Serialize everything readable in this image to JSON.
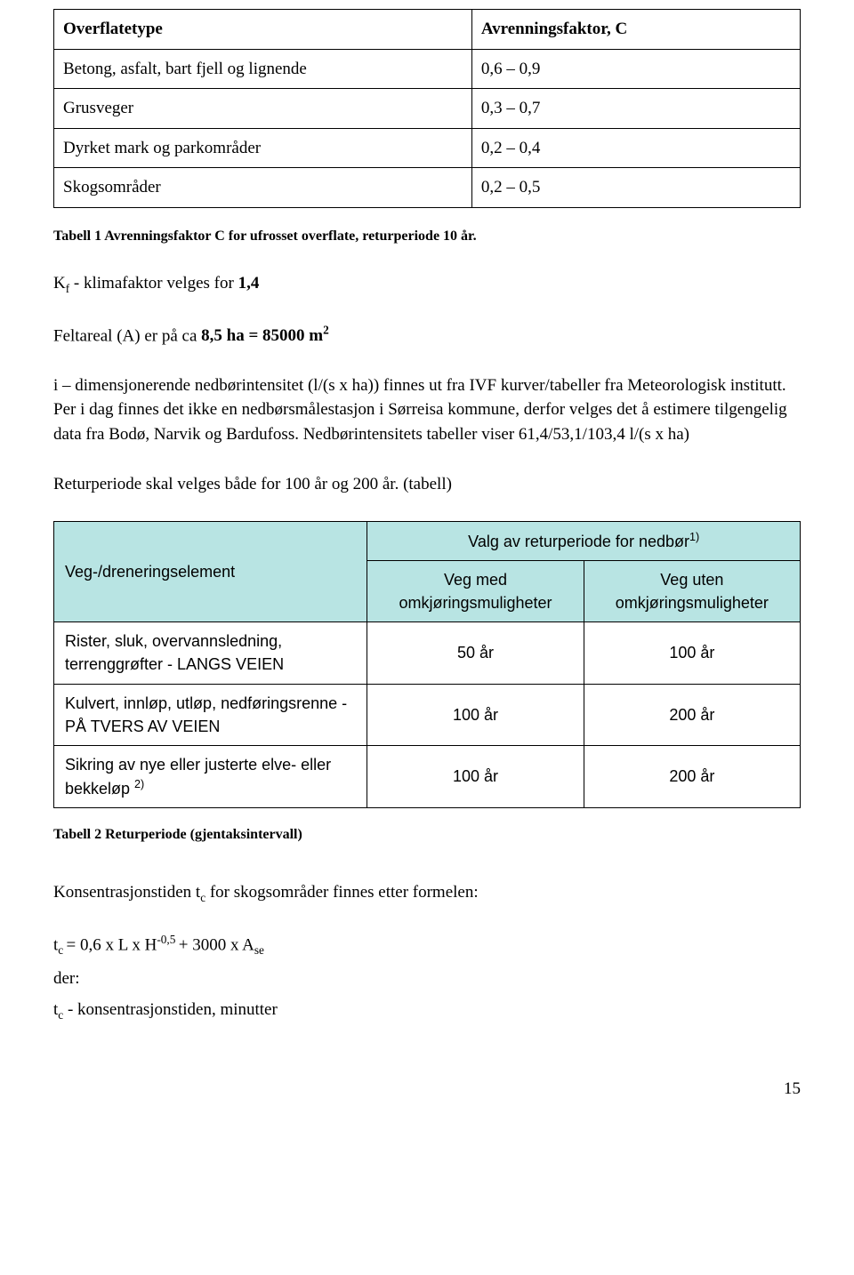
{
  "table1": {
    "columns": [
      "Overflatetype",
      "Avrenningsfaktor, C"
    ],
    "rows": [
      [
        "Betong, asfalt, bart fjell og lignende",
        "0,6 – 0,9"
      ],
      [
        "Grusveger",
        "0,3 – 0,7"
      ],
      [
        "Dyrket mark og parkområder",
        "0,2 – 0,4"
      ],
      [
        "Skogsområder",
        "0,2 – 0,5"
      ]
    ]
  },
  "caption1": "Tabell 1 Avrenningsfaktor C for ufrosset overflate, returperiode 10 år.",
  "para_kf_pre": "K",
  "para_kf_sub": "f",
  "para_kf_rest": "  - klimafaktor velges for ",
  "para_kf_bold": "1,4",
  "para_felt_pre": "Feltareal (A) er på ca ",
  "para_felt_bold": "8,5 ha = 85000 m",
  "para_felt_sup": "2",
  "para_i": "i – dimensjonerende nedbørintensitet (l/(s x ha)) finnes ut fra IVF kurver/tabeller fra Meteorologisk institutt. Per i dag finnes det ikke en nedbørsmålestasjon i Sørreisa kommune, derfor velges det å estimere tilgengelig data fra Bodø, Narvik og Bardufoss. Nedbørintensitets tabeller viser 61,4/53,1/103,4  l/(s x ha)",
  "para_retur": "Returperiode skal velges både for 100 år og 200 år. (tabell)",
  "table2": {
    "top_header": "Valg av returperiode for nedbør",
    "top_sup": "1)",
    "left_header": "Veg-/dreneringselement",
    "sub_headers": [
      "Veg med omkjøringsmuligheter",
      "Veg uten omkjøringsmuligheter"
    ],
    "rows": [
      [
        "Rister, sluk, overvannsledning, terrenggrøfter - LANGS VEIEN",
        "50 år",
        "100 år"
      ],
      [
        "Kulvert, innløp, utløp, nedføringsrenne - PÅ TVERS AV VEIEN",
        "100 år",
        "200 år"
      ],
      [
        "Sikring av nye eller justerte elve- eller bekkeløp ",
        "100 år",
        "200 år"
      ]
    ],
    "row3_sup": "2)"
  },
  "caption2": "Tabell 2 Returperiode (gjentaksintervall)",
  "para_kons_pre": "Konsentrasjonstiden t",
  "para_kons_sub": "c",
  "para_kons_rest": " for skogsområder finnes etter formelen:",
  "formula_pre": "t",
  "formula_sub1": "c ",
  "formula_mid": "= 0,6 x L x H",
  "formula_sup": "-0,5 ",
  "formula_rest": "+ 3000 x A",
  "formula_sub2": "se",
  "der": "der:",
  "para_tc_pre": "t",
  "para_tc_sub": "c",
  "para_tc_rest": "  - konsentrasjonstiden, minutter",
  "pagenum": "15"
}
